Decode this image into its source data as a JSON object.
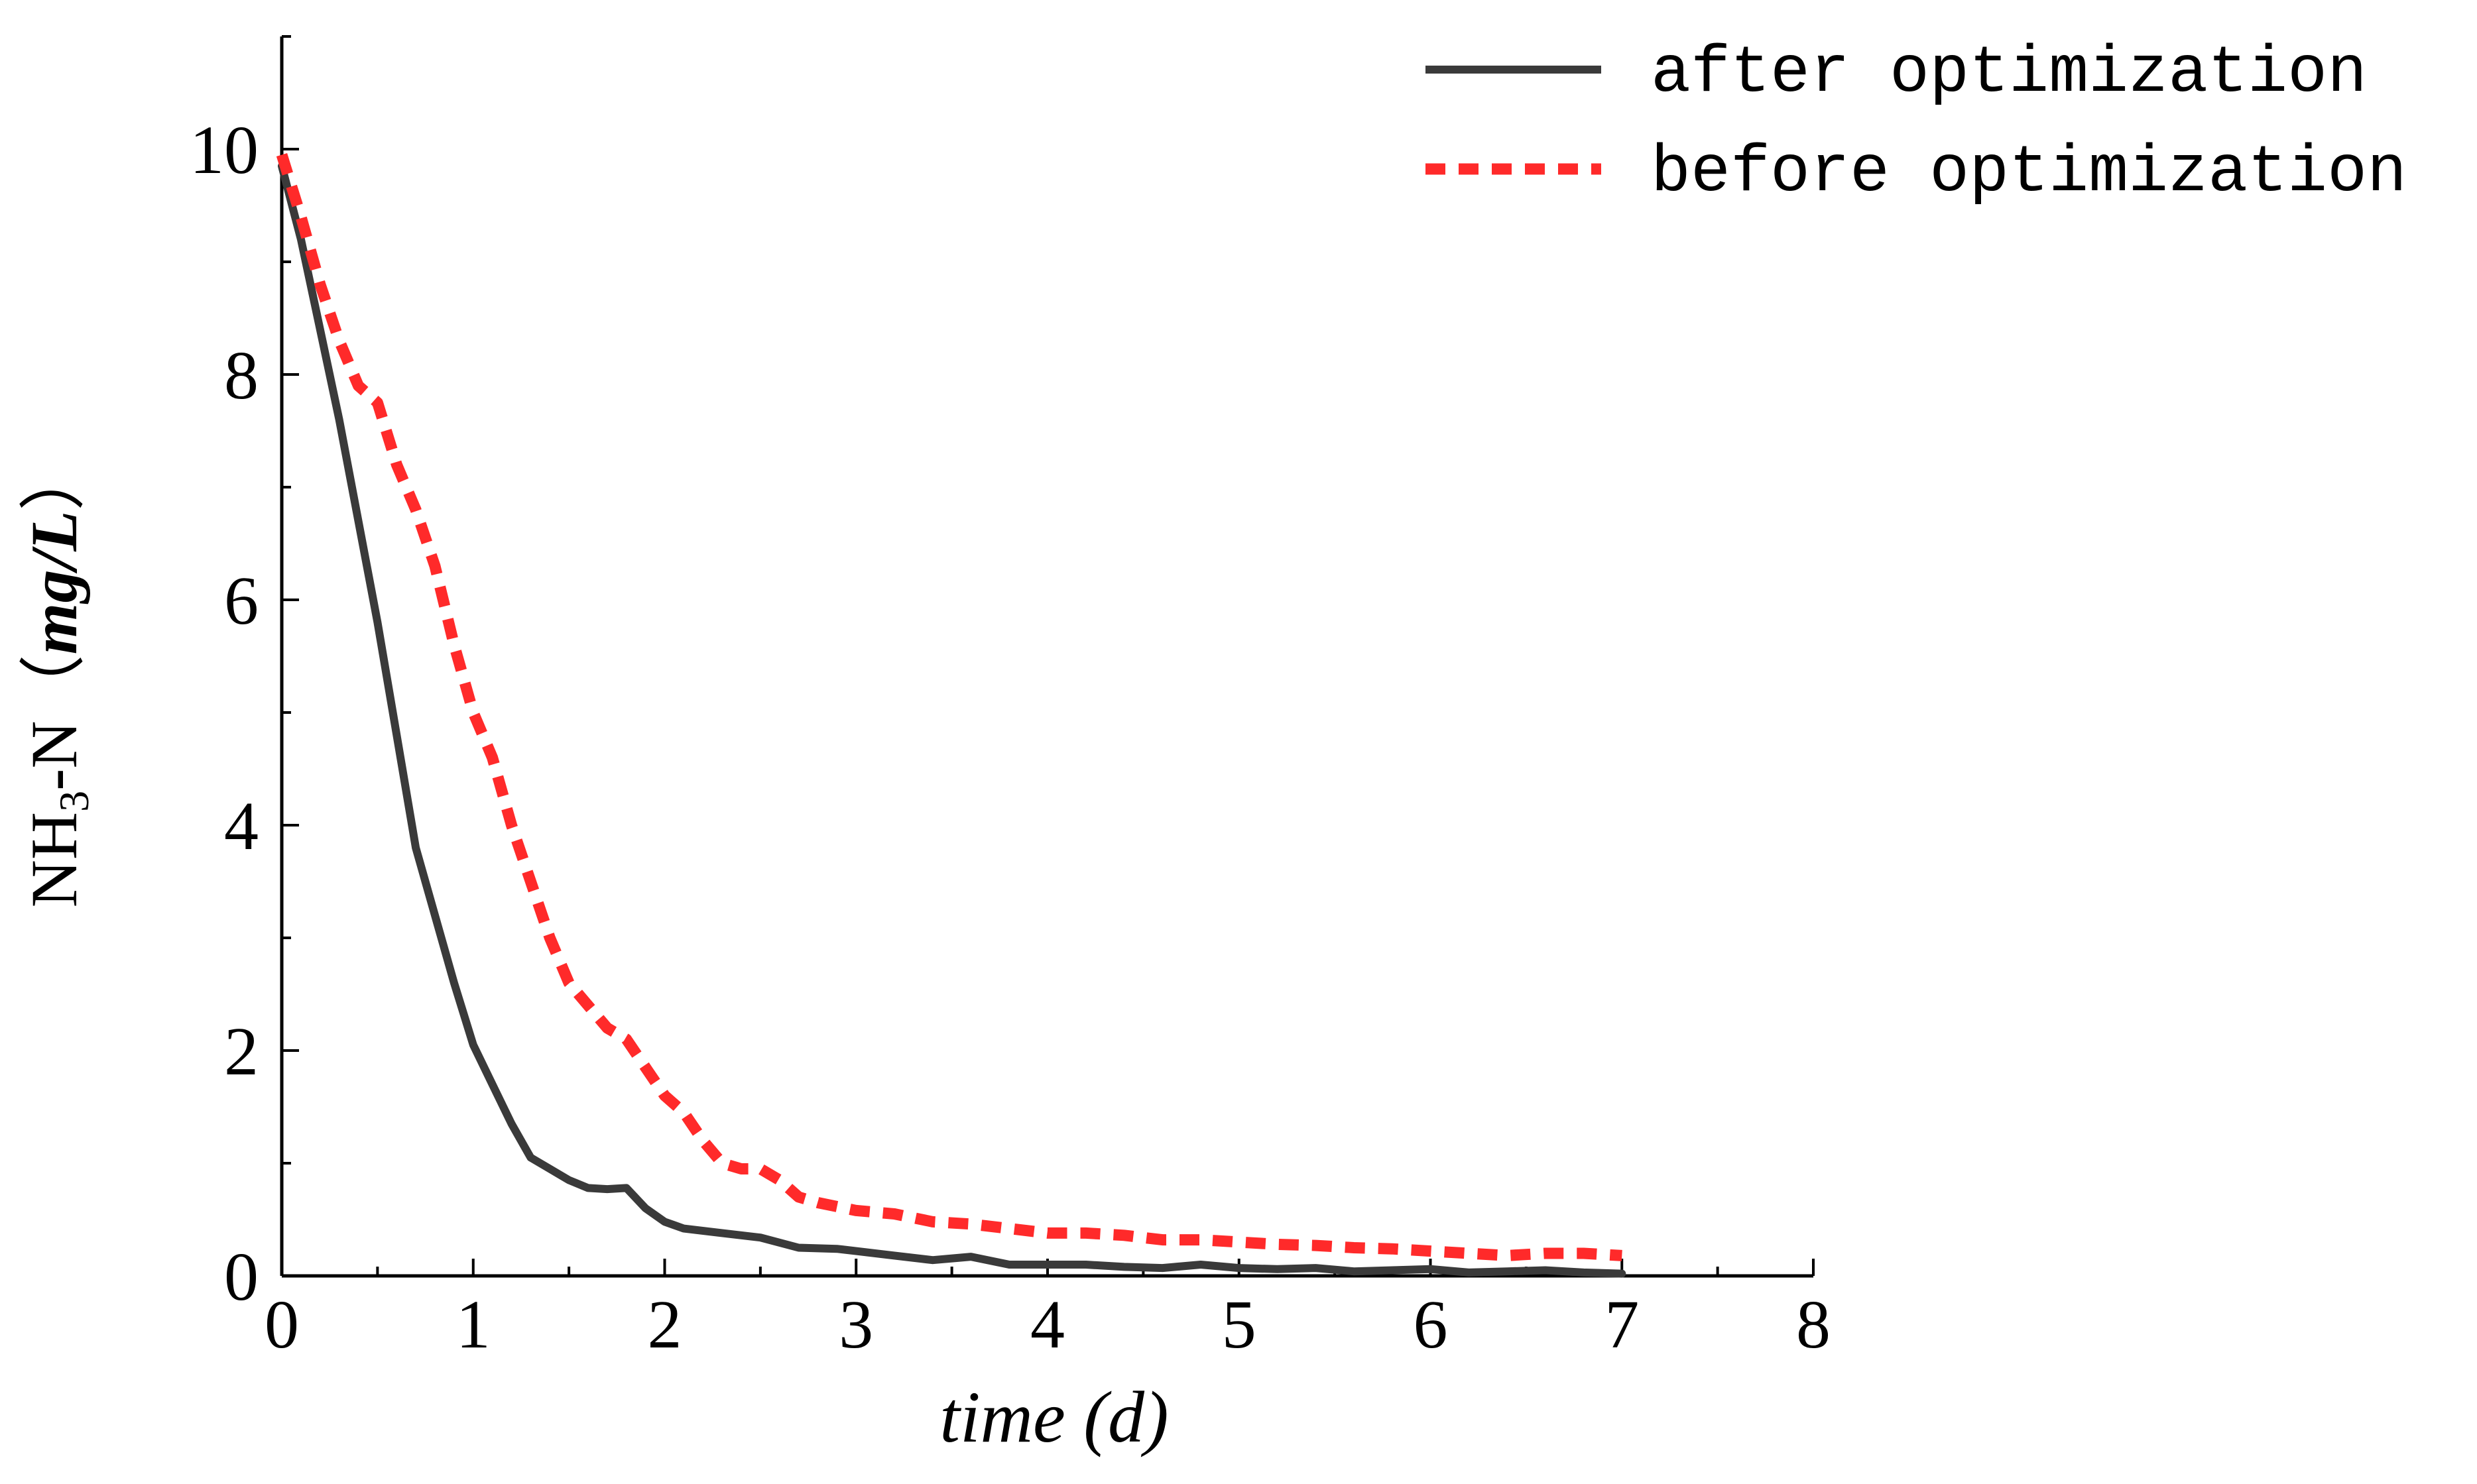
{
  "chart_data": {
    "type": "line",
    "xlabel": "time (d)",
    "ylabel": {
      "prefix": "NH",
      "subscript": "3",
      "suffix": "-N（",
      "unit": "mg/L",
      "close": "）"
    },
    "xlim": [
      0,
      8
    ],
    "ylim": [
      0,
      11
    ],
    "xticks": [
      "0",
      "1",
      "2",
      "3",
      "4",
      "5",
      "6",
      "7",
      "8"
    ],
    "yticks": [
      "0",
      "2",
      "4",
      "6",
      "8",
      "10"
    ],
    "grid": false,
    "legend": "top-right",
    "series": [
      {
        "name": "after optimization",
        "color": "#3a3a3a",
        "style": "solid",
        "x": [
          0,
          0.1,
          0.2,
          0.3,
          0.4,
          0.5,
          0.6,
          0.7,
          0.8,
          0.9,
          1.0,
          1.1,
          1.2,
          1.3,
          1.4,
          1.5,
          1.6,
          1.7,
          1.8,
          1.9,
          2.0,
          2.1,
          2.3,
          2.5,
          2.7,
          2.9,
          3.0,
          3.2,
          3.4,
          3.6,
          3.8,
          4.0,
          4.2,
          4.4,
          4.6,
          4.8,
          5.0,
          5.2,
          5.4,
          5.6,
          5.8,
          6.0,
          6.2,
          6.4,
          6.6,
          6.8,
          7.0
        ],
        "y": [
          9.85,
          9.2,
          8.4,
          7.6,
          6.7,
          5.8,
          4.8,
          3.8,
          3.2,
          2.6,
          2.05,
          1.7,
          1.35,
          1.05,
          0.95,
          0.85,
          0.78,
          0.77,
          0.78,
          0.6,
          0.48,
          0.42,
          0.38,
          0.34,
          0.25,
          0.24,
          0.22,
          0.18,
          0.14,
          0.17,
          0.1,
          0.1,
          0.1,
          0.08,
          0.07,
          0.1,
          0.07,
          0.06,
          0.07,
          0.04,
          0.05,
          0.06,
          0.03,
          0.04,
          0.05,
          0.03,
          0.02
        ]
      },
      {
        "name": "before optimization",
        "color": "#ff2a2a",
        "style": "dashed",
        "x": [
          0,
          0.1,
          0.2,
          0.3,
          0.4,
          0.5,
          0.6,
          0.7,
          0.8,
          0.9,
          1.0,
          1.1,
          1.2,
          1.3,
          1.4,
          1.5,
          1.6,
          1.7,
          1.8,
          1.9,
          2.0,
          2.1,
          2.2,
          2.3,
          2.4,
          2.5,
          2.6,
          2.7,
          2.8,
          3.0,
          3.2,
          3.4,
          3.6,
          3.8,
          4.0,
          4.2,
          4.4,
          4.6,
          4.8,
          5.0,
          5.2,
          5.4,
          5.6,
          5.8,
          6.0,
          6.2,
          6.4,
          6.6,
          6.8,
          7.0
        ],
        "y": [
          9.95,
          9.4,
          8.8,
          8.3,
          7.9,
          7.75,
          7.2,
          6.8,
          6.3,
          5.6,
          5.0,
          4.6,
          4.0,
          3.5,
          3.0,
          2.6,
          2.4,
          2.2,
          2.1,
          1.85,
          1.6,
          1.45,
          1.2,
          1.0,
          0.95,
          0.95,
          0.85,
          0.7,
          0.65,
          0.58,
          0.55,
          0.48,
          0.46,
          0.42,
          0.38,
          0.38,
          0.36,
          0.32,
          0.32,
          0.3,
          0.28,
          0.27,
          0.25,
          0.24,
          0.22,
          0.2,
          0.18,
          0.2,
          0.2,
          0.18
        ]
      }
    ]
  }
}
